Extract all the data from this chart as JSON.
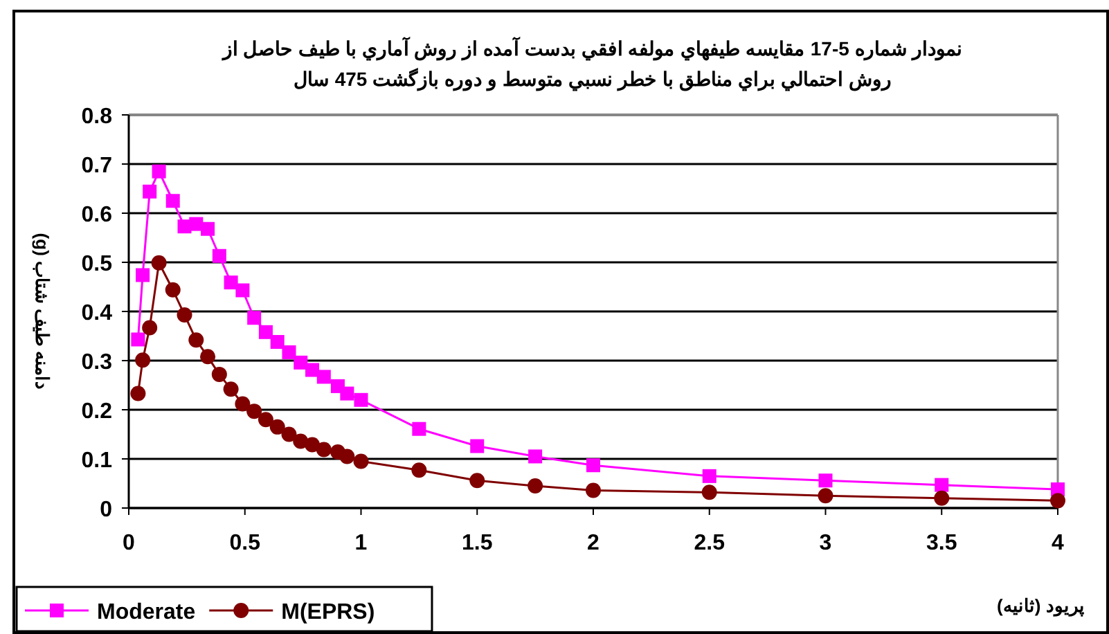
{
  "chart_data": {
    "type": "line",
    "title": "نمودار شماره  5-17  مقايسه طيفهاي مولفه افقي بدست آمده از روش آماري با طيف حاصل از\nروش احتمالي براي مناطق با خطر نسبي متوسط و دوره بازگشت 475 سال",
    "xlabel": "پريود (ثانيه)",
    "ylabel": "دامنه طيف شتاب (g)",
    "xlim": [
      0,
      4
    ],
    "xticks": [
      0,
      0.5,
      1,
      1.5,
      2,
      2.5,
      3,
      3.5,
      4
    ],
    "ylim": [
      0,
      0.8
    ],
    "yticks": [
      0,
      0.1,
      0.2,
      0.3,
      0.4,
      0.5,
      0.6,
      0.7,
      0.8
    ],
    "grid": "y",
    "legend": "bottom left",
    "series": [
      {
        "name": "Moderate",
        "color": "#ff00ff",
        "marker": "square",
        "x": [
          0.04,
          0.06,
          0.09,
          0.13,
          0.19,
          0.24,
          0.29,
          0.34,
          0.39,
          0.44,
          0.49,
          0.54,
          0.59,
          0.64,
          0.69,
          0.74,
          0.79,
          0.84,
          0.9,
          0.94,
          1.0,
          1.25,
          1.5,
          1.75,
          2,
          2.5,
          3,
          3.5,
          4
        ],
        "values": [
          0.343,
          0.474,
          0.644,
          0.685,
          0.625,
          0.573,
          0.578,
          0.568,
          0.513,
          0.459,
          0.443,
          0.387,
          0.358,
          0.338,
          0.317,
          0.296,
          0.281,
          0.267,
          0.248,
          0.233,
          0.22,
          0.161,
          0.126,
          0.105,
          0.087,
          0.065,
          0.056,
          0.047,
          0.038
        ]
      },
      {
        "name": "M(EPRS)",
        "color": "#800000",
        "marker": "circle",
        "x": [
          0.04,
          0.06,
          0.09,
          0.13,
          0.19,
          0.24,
          0.29,
          0.34,
          0.39,
          0.44,
          0.49,
          0.54,
          0.59,
          0.64,
          0.69,
          0.74,
          0.79,
          0.84,
          0.9,
          0.94,
          1.0,
          1.25,
          1.5,
          1.75,
          2,
          2.5,
          3,
          3.5,
          4
        ],
        "values": [
          0.233,
          0.301,
          0.367,
          0.499,
          0.444,
          0.393,
          0.342,
          0.308,
          0.272,
          0.242,
          0.212,
          0.197,
          0.18,
          0.165,
          0.15,
          0.136,
          0.129,
          0.119,
          0.114,
          0.105,
          0.095,
          0.077,
          0.056,
          0.045,
          0.036,
          0.032,
          0.025,
          0.02,
          0.015
        ]
      }
    ]
  }
}
